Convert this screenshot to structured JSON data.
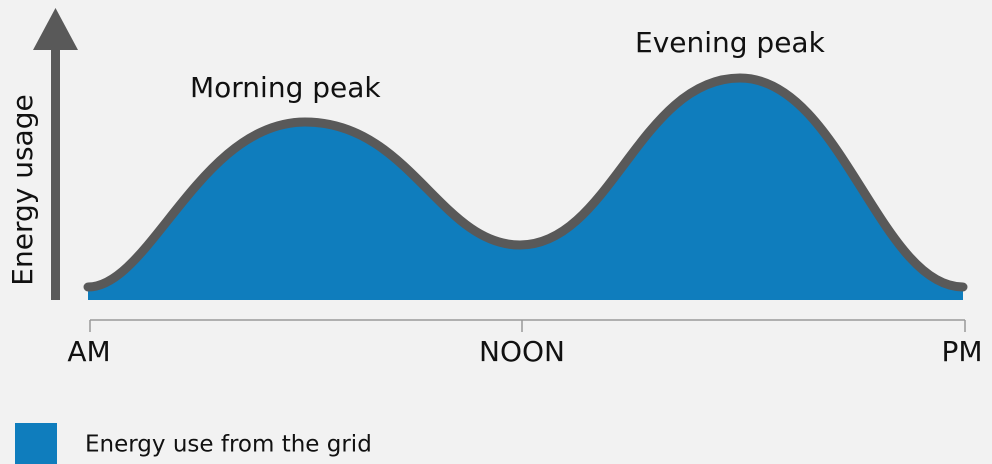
{
  "y_axis_label": "Energy usage",
  "x_labels": [
    "AM",
    "NOON",
    "PM"
  ],
  "annotations": [
    "Morning peak",
    "Evening peak"
  ],
  "legend": [
    "Energy use from the grid"
  ]
}
